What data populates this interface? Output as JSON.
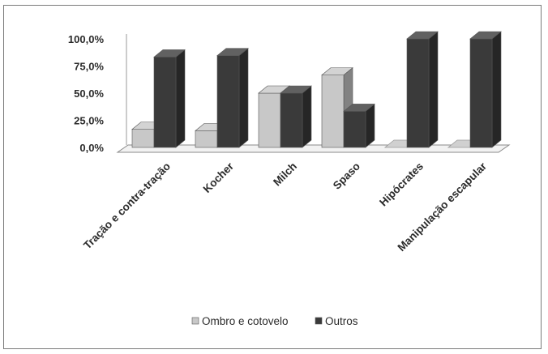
{
  "chart_data": {
    "type": "bar",
    "title": "",
    "xlabel": "",
    "ylabel": "",
    "ylim": [
      0,
      100
    ],
    "yticks": [
      "0,0%",
      "25,0%",
      "50,0%",
      "75,0%",
      "100,0%"
    ],
    "categories": [
      "Tração e contra-tração",
      "Kocher",
      "Milch",
      "Spaso",
      "Hipócrates",
      "Manipulação escapular"
    ],
    "series": [
      {
        "name": "Ombro e cotovelo",
        "values": [
          16.7,
          15.4,
          50.0,
          66.7,
          0.0,
          0.0
        ],
        "color": "#c8c8c8"
      },
      {
        "name": "Outros",
        "values": [
          83.3,
          84.6,
          50.0,
          33.3,
          100.0,
          100.0
        ],
        "color": "#3a3a3a"
      }
    ],
    "legend_position": "bottom",
    "grid": false,
    "style": "3d-column"
  }
}
